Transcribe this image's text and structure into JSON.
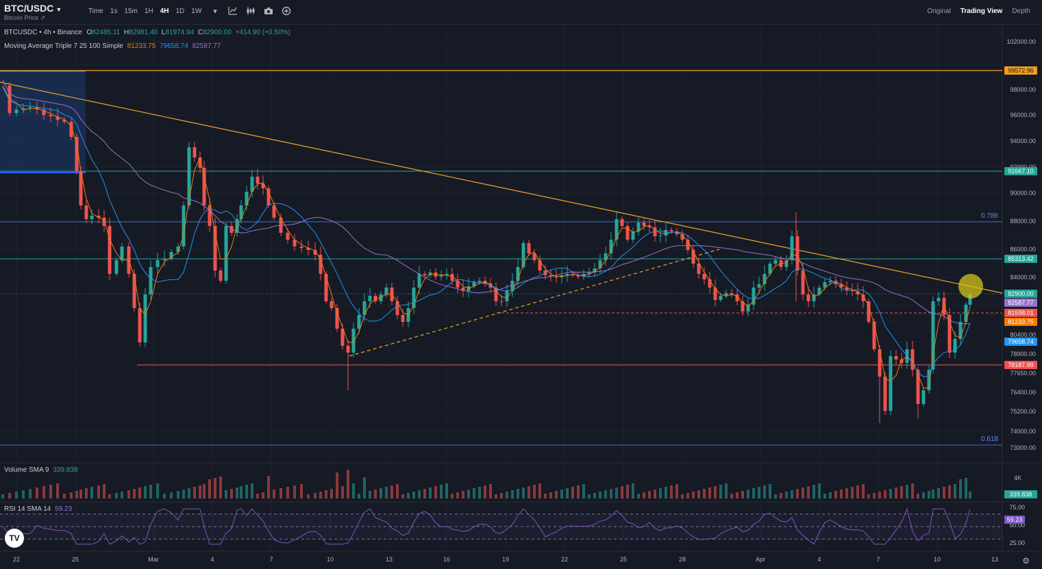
{
  "header": {
    "symbol": "BTC/USDC",
    "subtitle": "Bitcoin Price ↗",
    "intervals": [
      "Time",
      "1s",
      "15m",
      "1H",
      "4H",
      "1D",
      "1W"
    ],
    "active_interval": "4H",
    "tool_icons": [
      "chevron-down-icon",
      "line-chart-icon",
      "candles-icon",
      "camera-icon",
      "add-icon"
    ],
    "views": [
      "Original",
      "Trading View",
      "Depth"
    ],
    "active_view": "Trading View"
  },
  "legend": {
    "main": "BTCUSDC • 4h • Binance",
    "ohlc": [
      {
        "k": "O",
        "v": "82485.11"
      },
      {
        "k": "H",
        "v": "82981.40"
      },
      {
        "k": "L",
        "v": "81974.94"
      },
      {
        "k": "C",
        "v": "82900.00"
      }
    ],
    "change": "+414.90 (+0.50%)",
    "ma_title": "Moving Average Triple 7 25 100 Simple",
    "ma_values": [
      {
        "v": "81233.75",
        "color": "#f57c00"
      },
      {
        "v": "79658.74",
        "color": "#2196f3"
      },
      {
        "v": "82587.77",
        "color": "#9575cd"
      }
    ],
    "volume_title": "Volume SMA 9",
    "volume_value": "339.838",
    "rsi_title": "RSI 14 SMA 14",
    "rsi_value": "59.23"
  },
  "price_axis": {
    "ticks": [
      "102000.00",
      "98000.00",
      "96000.00",
      "94000.00",
      "92000.00",
      "90000.00",
      "88000.00",
      "86000.00",
      "84000.00",
      "80400.00",
      "78900.00",
      "77650.00",
      "76400.00",
      "75200.00",
      "74000.00",
      "73000.00"
    ],
    "tags": [
      {
        "label": "99572.96",
        "bg": "#f59d19",
        "fg": "#131722"
      },
      {
        "label": "91667.10",
        "bg": "#26a69a",
        "fg": "#ffffff"
      },
      {
        "label": "85313.42",
        "bg": "#26a69a",
        "fg": "#ffffff"
      },
      {
        "label": "82900.00",
        "bg": "#26a69a",
        "fg": "#ffffff"
      },
      {
        "label": "82587.77",
        "bg": "#9575cd",
        "fg": "#ffffff"
      },
      {
        "label": "81598.01",
        "bg": "#ef5350",
        "fg": "#ffffff"
      },
      {
        "label": "81233.75",
        "bg": "#f57c00",
        "fg": "#ffffff"
      },
      {
        "label": "79658.74",
        "bg": "#2196f3",
        "fg": "#ffffff"
      },
      {
        "label": "78187.99",
        "bg": "#ef5350",
        "fg": "#ffffff"
      }
    ],
    "fib_labels": [
      "0.786",
      "0.618"
    ]
  },
  "volume_axis": {
    "ticks": [
      "4K"
    ],
    "tag": "339.838"
  },
  "rsi_axis": {
    "ticks": [
      "75.00",
      "50.00",
      "25.00"
    ],
    "tag": "59.23"
  },
  "time_axis": {
    "labels": [
      "22",
      "25",
      "Mar",
      "4",
      "7",
      "10",
      "13",
      "16",
      "19",
      "22",
      "25",
      "28",
      "Apr",
      "4",
      "7",
      "10",
      "13"
    ]
  },
  "colors": {
    "background": "#161a25",
    "up": "#26a69a",
    "down": "#ef5350",
    "ma7": "#f57c00",
    "ma25": "#2196f3",
    "ma100": "#9575cd",
    "trendline": "#f5a623",
    "support_green": "#26a69a",
    "fib_blue": "#3d6fbf",
    "support_red": "#ef5350",
    "highlight_circle": "#d4c21c"
  },
  "logo_text": "TV"
}
